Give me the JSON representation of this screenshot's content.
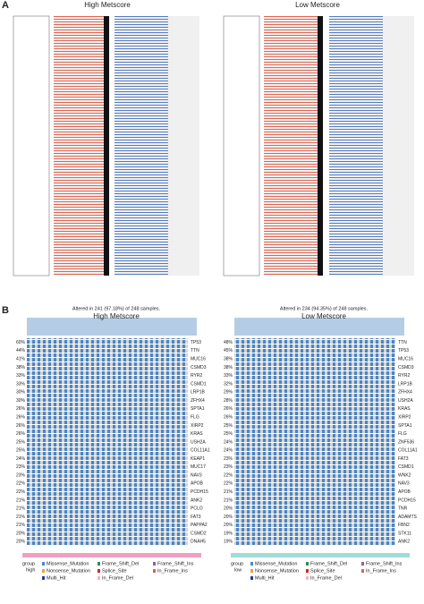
{
  "panel_a": {
    "label": "A",
    "left_title": "High Metscore",
    "right_title": "Low Metscore"
  },
  "panel_b": {
    "label": "B",
    "left": {
      "altered": "Altered in 241 (97.18%) of 248 samples.",
      "title": "High Metscore",
      "genes": [
        "TP53",
        "TTN",
        "MUC16",
        "CSMD3",
        "RYR2",
        "CSMD1",
        "LRP1B",
        "ZFHX4",
        "SPTA1",
        "FLG",
        "XIRP2",
        "KRAS",
        "USH2A",
        "COL11A1",
        "KEAP1",
        "MUC17",
        "NAV3",
        "APOB",
        "PCDH15",
        "ANK2",
        "PCLO",
        "FAT3",
        "PAPPA2",
        "CSMD2",
        "DNAH5"
      ],
      "pcts": [
        "60%",
        "44%",
        "41%",
        "38%",
        "33%",
        "33%",
        "30%",
        "30%",
        "26%",
        "26%",
        "26%",
        "26%",
        "25%",
        "25%",
        "24%",
        "23%",
        "23%",
        "22%",
        "22%",
        "21%",
        "21%",
        "21%",
        "21%",
        "20%",
        "20%"
      ]
    },
    "right": {
      "altered": "Altered in 234 (94.35%) of 248 samples.",
      "title": "Low Metscore",
      "genes": [
        "TTN",
        "TP53",
        "MUC16",
        "CSMD3",
        "RYR2",
        "LRP1B",
        "ZFHX4",
        "USH2A",
        "KRAS",
        "XIRP2",
        "SPTA1",
        "FLG",
        "ZNF536",
        "COL11A1",
        "FAT3",
        "CSMD1",
        "WNK2",
        "NAV3",
        "APOB",
        "PCDH15",
        "TNR",
        "ADAMTS",
        "FBN2",
        "STK11",
        "ANK2"
      ],
      "pcts": [
        "48%",
        "45%",
        "38%",
        "38%",
        "33%",
        "32%",
        "29%",
        "28%",
        "26%",
        "26%",
        "25%",
        "25%",
        "24%",
        "24%",
        "23%",
        "23%",
        "22%",
        "22%",
        "21%",
        "21%",
        "20%",
        "20%",
        "20%",
        "19%",
        "19%"
      ]
    },
    "legend": {
      "left_group": [
        "group",
        "high"
      ],
      "right_group": [
        "group",
        "low"
      ],
      "items": [
        "Missense_Mutation",
        "Frame_Shift_Del",
        "Frame_Shift_Ins",
        "Nonsense_Mutation",
        "Splice_Site",
        "In_Frame_Ins",
        "Multi_Hit",
        "In_Frame_Del"
      ]
    }
  }
}
